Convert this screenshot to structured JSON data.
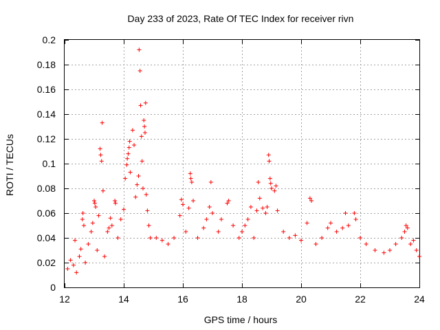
{
  "chart_data": {
    "type": "scatter",
    "title": "Day 233 of 2023, Rate Of TEC Index for receiver rivn",
    "xlabel": "GPS time / hours",
    "ylabel": "ROTI / TECUs",
    "xlim": [
      12,
      24
    ],
    "ylim": [
      0,
      0.2
    ],
    "x_ticks": [
      12,
      14,
      16,
      18,
      20,
      22,
      24
    ],
    "x_tick_labels": [
      "12",
      "14",
      "16",
      "18",
      "20",
      "22",
      "24"
    ],
    "y_ticks": [
      0,
      0.02,
      0.04,
      0.06,
      0.08,
      0.1,
      0.12,
      0.14,
      0.16,
      0.18,
      0.2
    ],
    "y_tick_labels": [
      "0",
      "0.02",
      "0.04",
      "0.06",
      "0.08",
      "0.1",
      "0.12",
      "0.14",
      "0.16",
      "0.18",
      "0.2"
    ],
    "grid": true,
    "marker": "+",
    "color": "#ff0000",
    "series": [
      {
        "name": "ROTI",
        "points": [
          [
            12.1,
            0.015
          ],
          [
            12.2,
            0.022
          ],
          [
            12.3,
            0.018
          ],
          [
            12.35,
            0.038
          ],
          [
            12.4,
            0.012
          ],
          [
            12.5,
            0.025
          ],
          [
            12.55,
            0.031
          ],
          [
            12.6,
            0.055
          ],
          [
            12.62,
            0.06
          ],
          [
            12.65,
            0.05
          ],
          [
            12.7,
            0.02
          ],
          [
            12.8,
            0.035
          ],
          [
            12.9,
            0.045
          ],
          [
            12.95,
            0.052
          ],
          [
            13.0,
            0.07
          ],
          [
            13.02,
            0.068
          ],
          [
            13.05,
            0.065
          ],
          [
            13.1,
            0.03
          ],
          [
            13.15,
            0.058
          ],
          [
            13.2,
            0.112
          ],
          [
            13.22,
            0.107
          ],
          [
            13.25,
            0.102
          ],
          [
            13.27,
            0.133
          ],
          [
            13.3,
            0.078
          ],
          [
            13.35,
            0.025
          ],
          [
            13.45,
            0.045
          ],
          [
            13.5,
            0.048
          ],
          [
            13.55,
            0.056
          ],
          [
            13.6,
            0.05
          ],
          [
            13.7,
            0.07
          ],
          [
            13.72,
            0.068
          ],
          [
            13.8,
            0.04
          ],
          [
            13.9,
            0.055
          ],
          [
            14.0,
            0.063
          ],
          [
            14.05,
            0.088
          ],
          [
            14.1,
            0.099
          ],
          [
            14.12,
            0.104
          ],
          [
            14.15,
            0.108
          ],
          [
            14.18,
            0.113
          ],
          [
            14.2,
            0.118
          ],
          [
            14.22,
            0.093
          ],
          [
            14.3,
            0.127
          ],
          [
            14.35,
            0.115
          ],
          [
            14.4,
            0.073
          ],
          [
            14.45,
            0.083
          ],
          [
            14.5,
            0.09
          ],
          [
            14.52,
            0.192
          ],
          [
            14.55,
            0.175
          ],
          [
            14.57,
            0.147
          ],
          [
            14.6,
            0.122
          ],
          [
            14.62,
            0.102
          ],
          [
            14.65,
            0.08
          ],
          [
            14.68,
            0.135
          ],
          [
            14.7,
            0.13
          ],
          [
            14.72,
            0.125
          ],
          [
            14.74,
            0.149
          ],
          [
            14.76,
            0.075
          ],
          [
            14.8,
            0.062
          ],
          [
            14.85,
            0.05
          ],
          [
            14.9,
            0.04
          ],
          [
            15.1,
            0.04
          ],
          [
            15.3,
            0.038
          ],
          [
            15.5,
            0.035
          ],
          [
            15.7,
            0.04
          ],
          [
            15.9,
            0.058
          ],
          [
            15.95,
            0.071
          ],
          [
            16.0,
            0.067
          ],
          [
            16.1,
            0.045
          ],
          [
            16.2,
            0.064
          ],
          [
            16.25,
            0.092
          ],
          [
            16.27,
            0.088
          ],
          [
            16.3,
            0.085
          ],
          [
            16.35,
            0.07
          ],
          [
            16.5,
            0.04
          ],
          [
            16.7,
            0.048
          ],
          [
            16.8,
            0.055
          ],
          [
            16.9,
            0.065
          ],
          [
            16.95,
            0.085
          ],
          [
            17.0,
            0.06
          ],
          [
            17.2,
            0.045
          ],
          [
            17.3,
            0.055
          ],
          [
            17.5,
            0.068
          ],
          [
            17.55,
            0.07
          ],
          [
            17.7,
            0.05
          ],
          [
            17.9,
            0.04
          ],
          [
            18.0,
            0.045
          ],
          [
            18.1,
            0.05
          ],
          [
            18.2,
            0.055
          ],
          [
            18.3,
            0.065
          ],
          [
            18.4,
            0.04
          ],
          [
            18.5,
            0.062
          ],
          [
            18.55,
            0.085
          ],
          [
            18.6,
            0.072
          ],
          [
            18.7,
            0.064
          ],
          [
            18.8,
            0.06
          ],
          [
            18.85,
            0.065
          ],
          [
            18.9,
            0.107
          ],
          [
            18.92,
            0.102
          ],
          [
            18.95,
            0.088
          ],
          [
            18.97,
            0.084
          ],
          [
            19.0,
            0.08
          ],
          [
            19.1,
            0.078
          ],
          [
            19.15,
            0.082
          ],
          [
            19.2,
            0.062
          ],
          [
            19.4,
            0.045
          ],
          [
            19.6,
            0.04
          ],
          [
            19.8,
            0.042
          ],
          [
            20.0,
            0.038
          ],
          [
            20.2,
            0.052
          ],
          [
            20.3,
            0.072
          ],
          [
            20.35,
            0.07
          ],
          [
            20.5,
            0.035
          ],
          [
            20.7,
            0.04
          ],
          [
            20.9,
            0.048
          ],
          [
            21.0,
            0.052
          ],
          [
            21.2,
            0.045
          ],
          [
            21.4,
            0.048
          ],
          [
            21.5,
            0.06
          ],
          [
            21.6,
            0.05
          ],
          [
            21.8,
            0.06
          ],
          [
            21.85,
            0.055
          ],
          [
            22.0,
            0.04
          ],
          [
            22.2,
            0.035
          ],
          [
            22.5,
            0.03
          ],
          [
            22.8,
            0.028
          ],
          [
            23.0,
            0.03
          ],
          [
            23.2,
            0.035
          ],
          [
            23.4,
            0.04
          ],
          [
            23.5,
            0.045
          ],
          [
            23.55,
            0.05
          ],
          [
            23.6,
            0.048
          ],
          [
            23.7,
            0.035
          ],
          [
            23.8,
            0.038
          ],
          [
            23.9,
            0.03
          ],
          [
            24.0,
            0.025
          ]
        ]
      }
    ]
  }
}
